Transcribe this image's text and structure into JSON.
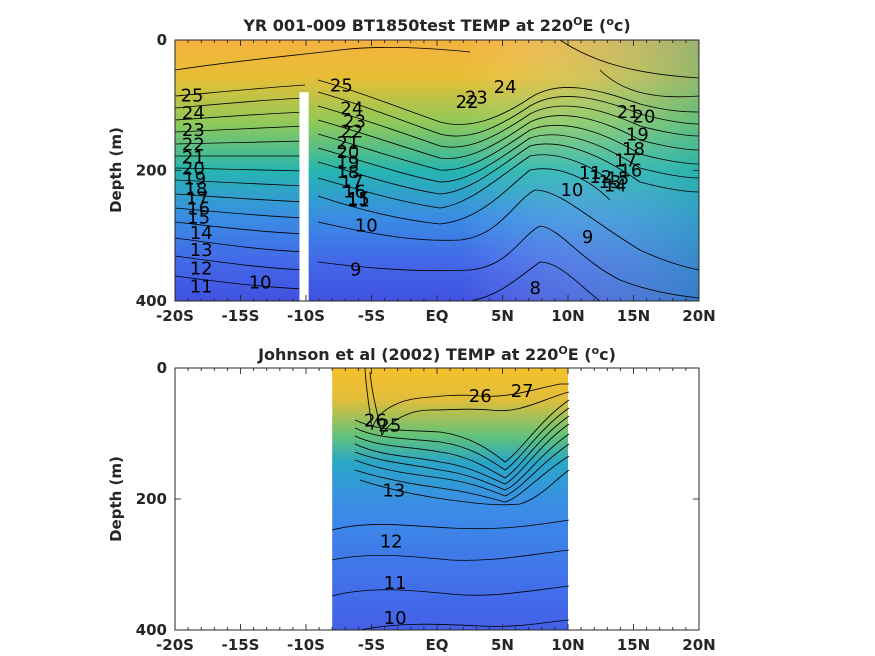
{
  "chart_data": [
    {
      "type": "contour",
      "title_prefix": "YR 001-009 BT1850test TEMP at 220",
      "title_degsup": "O",
      "title_mid": "E (",
      "title_unitsup": "o",
      "title_end": "c)",
      "ylabel": "Depth (m)",
      "xlabel": "",
      "xlim": [
        -20,
        20
      ],
      "ylim": [
        0,
        400
      ],
      "y_reversed": true,
      "x_major_ticks": [
        -20,
        -15,
        -10,
        -5,
        0,
        5,
        10,
        15,
        20
      ],
      "x_tick_labels": [
        "-20S",
        "-15S",
        "-10S",
        "-5S",
        "EQ",
        "5N",
        "10N",
        "15N",
        "20N"
      ],
      "y_ticks": [
        0,
        200,
        400
      ],
      "y_tick_labels": [
        "0",
        "200",
        "400"
      ],
      "data_x_range": [
        -20,
        20
      ],
      "gap": {
        "x_from": -10.5,
        "x_to": -9.8,
        "depth_from": 80,
        "depth_to": 400
      },
      "contour_labels": [
        {
          "text": "25",
          "x": -18.7,
          "depth": 85
        },
        {
          "text": "24",
          "x": -18.6,
          "depth": 112
        },
        {
          "text": "23",
          "x": -18.6,
          "depth": 138
        },
        {
          "text": "22",
          "x": -18.6,
          "depth": 160
        },
        {
          "text": "21",
          "x": -18.6,
          "depth": 180
        },
        {
          "text": "20",
          "x": -18.6,
          "depth": 197
        },
        {
          "text": "19",
          "x": -18.5,
          "depth": 212
        },
        {
          "text": "18",
          "x": -18.4,
          "depth": 228
        },
        {
          "text": "17",
          "x": -18.3,
          "depth": 243
        },
        {
          "text": "16",
          "x": -18.2,
          "depth": 258
        },
        {
          "text": "15",
          "x": -18.2,
          "depth": 272
        },
        {
          "text": "14",
          "x": -18.0,
          "depth": 296
        },
        {
          "text": "13",
          "x": -18.0,
          "depth": 322
        },
        {
          "text": "12",
          "x": -18.0,
          "depth": 350
        },
        {
          "text": "11",
          "x": -18.0,
          "depth": 378
        },
        {
          "text": "10",
          "x": -13.5,
          "depth": 372
        },
        {
          "text": "25",
          "x": -7.3,
          "depth": 70
        },
        {
          "text": "24",
          "x": -6.5,
          "depth": 105
        },
        {
          "text": "23",
          "x": -6.3,
          "depth": 125
        },
        {
          "text": "22",
          "x": -6.5,
          "depth": 140
        },
        {
          "text": "21",
          "x": -6.8,
          "depth": 158
        },
        {
          "text": "20",
          "x": -6.8,
          "depth": 172
        },
        {
          "text": "19",
          "x": -6.8,
          "depth": 188
        },
        {
          "text": "18",
          "x": -6.8,
          "depth": 202
        },
        {
          "text": "17",
          "x": -6.5,
          "depth": 218
        },
        {
          "text": "16",
          "x": -6.3,
          "depth": 232
        },
        {
          "text": "15",
          "x": -6.0,
          "depth": 244
        },
        {
          "text": "11",
          "x": -6.0,
          "depth": 246
        },
        {
          "text": "10",
          "x": -5.4,
          "depth": 284
        },
        {
          "text": "9",
          "x": -6.2,
          "depth": 352
        },
        {
          "text": "22",
          "x": 2.3,
          "depth": 95
        },
        {
          "text": "23",
          "x": 3.0,
          "depth": 88
        },
        {
          "text": "24",
          "x": 5.2,
          "depth": 72
        },
        {
          "text": "21",
          "x": 14.6,
          "depth": 110
        },
        {
          "text": "20",
          "x": 15.8,
          "depth": 117
        },
        {
          "text": "19",
          "x": 15.3,
          "depth": 145
        },
        {
          "text": "18",
          "x": 15.0,
          "depth": 167
        },
        {
          "text": "17",
          "x": 14.4,
          "depth": 185
        },
        {
          "text": "16",
          "x": 14.8,
          "depth": 200
        },
        {
          "text": "15",
          "x": 13.8,
          "depth": 212
        },
        {
          "text": "14",
          "x": 13.6,
          "depth": 223
        },
        {
          "text": "13",
          "x": 13.2,
          "depth": 218
        },
        {
          "text": "12",
          "x": 12.5,
          "depth": 210
        },
        {
          "text": "11",
          "x": 11.7,
          "depth": 204
        },
        {
          "text": "10",
          "x": 10.3,
          "depth": 230
        },
        {
          "text": "9",
          "x": 11.5,
          "depth": 302
        },
        {
          "text": "8",
          "x": 7.5,
          "depth": 380
        }
      ]
    },
    {
      "type": "contour",
      "title_prefix": "Johnson et al (2002) TEMP at 220",
      "title_degsup": "O",
      "title_mid": "E (",
      "title_unitsup": "o",
      "title_end": "c)",
      "ylabel": "Depth (m)",
      "xlabel": "",
      "xlim": [
        -20,
        20
      ],
      "ylim": [
        0,
        400
      ],
      "y_reversed": true,
      "x_major_ticks": [
        -20,
        -15,
        -10,
        -5,
        0,
        5,
        10,
        15,
        20
      ],
      "x_tick_labels": [
        "-20S",
        "-15S",
        "-10S",
        "-5S",
        "EQ",
        "5N",
        "10N",
        "15N",
        "20N"
      ],
      "y_ticks": [
        0,
        200,
        400
      ],
      "y_tick_labels": [
        "0",
        "200",
        "400"
      ],
      "data_x_range": [
        -8,
        10
      ],
      "contour_labels": [
        {
          "text": "26",
          "x": -4.7,
          "depth": 80
        },
        {
          "text": "25",
          "x": -3.6,
          "depth": 88
        },
        {
          "text": "26",
          "x": 3.3,
          "depth": 43
        },
        {
          "text": "27",
          "x": 6.5,
          "depth": 35
        },
        {
          "text": "13",
          "x": -3.3,
          "depth": 187
        },
        {
          "text": "12",
          "x": -3.5,
          "depth": 265
        },
        {
          "text": "11",
          "x": -3.2,
          "depth": 328
        },
        {
          "text": "10",
          "x": -3.2,
          "depth": 382
        }
      ]
    }
  ]
}
